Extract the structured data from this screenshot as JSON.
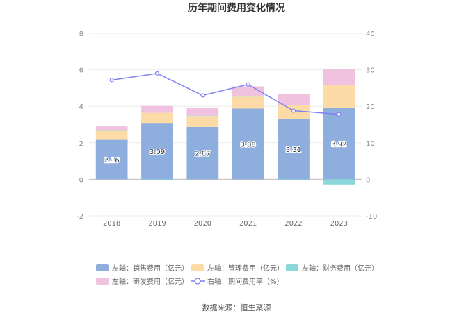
{
  "chart_data": {
    "type": "bar",
    "title": "历年期间费用变化情况",
    "categories": [
      "2018",
      "2019",
      "2020",
      "2021",
      "2022",
      "2023"
    ],
    "left_axis": {
      "ticks": [
        "-2",
        "0",
        "2",
        "4",
        "6",
        "8"
      ],
      "ylim": [
        -2,
        8
      ]
    },
    "right_axis": {
      "ticks": [
        "-10",
        "0",
        "10",
        "20",
        "30",
        "40"
      ],
      "ylim": [
        -10,
        40
      ]
    },
    "series": [
      {
        "name": "左轴：销售费用（亿元）",
        "kind": "bar",
        "axis": "left",
        "color": "#8eaede",
        "values": [
          2.16,
          3.09,
          2.87,
          3.88,
          3.31,
          3.92
        ],
        "labels": [
          "2.16",
          "3.09",
          "2.87",
          "3.88",
          "3.31",
          "3.92"
        ]
      },
      {
        "name": "左轴：管理费用（亿元）",
        "kind": "bar",
        "axis": "left",
        "color": "#fddba6",
        "values": [
          0.5,
          0.55,
          0.6,
          0.65,
          0.75,
          1.25
        ]
      },
      {
        "name": "左轴：财务费用（亿元）",
        "kind": "bar",
        "axis": "left",
        "color": "#8ad8da",
        "values": [
          0.02,
          -0.05,
          0.02,
          0.02,
          -0.05,
          -0.28
        ]
      },
      {
        "name": "左轴：研发费用（亿元）",
        "kind": "bar",
        "axis": "left",
        "color": "#f0c2df",
        "values": [
          0.22,
          0.38,
          0.42,
          0.54,
          0.62,
          0.85
        ]
      },
      {
        "name": "右轴：期间费用率（%）",
        "kind": "line",
        "axis": "right",
        "color": "#8080f0",
        "values": [
          27.2,
          29.0,
          23.0,
          26.0,
          18.8,
          17.8
        ]
      }
    ],
    "legend_position": "bottom",
    "grid": true
  },
  "source_text": "数据来源：恒生聚源"
}
